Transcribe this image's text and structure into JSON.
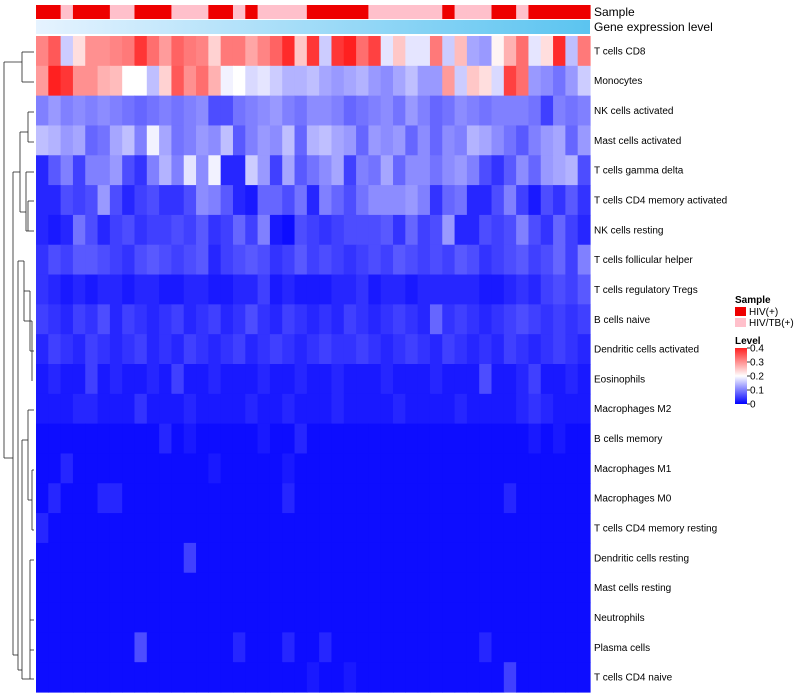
{
  "chart_data": {
    "type": "heatmap",
    "title": "",
    "tracks": [
      {
        "label": "Sample"
      },
      {
        "label": "Gene expression level"
      }
    ],
    "rows": [
      "T cells CD8",
      "Monocytes",
      "NK cells activated",
      "Mast cells activated",
      "T cells gamma delta",
      "T cells CD4 memory activated",
      "NK cells resting",
      "T cells follicular helper",
      "T cells regulatory  Tregs",
      "B cells naive",
      "Dendritic cells activated",
      "Eosinophils",
      "Macrophages M2",
      "B cells memory",
      "Macrophages M1",
      "Macrophages M0",
      "T cells CD4 memory resting",
      "Dendritic cells resting",
      "Mast cells resting",
      "Neutrophils",
      "Plasma cells",
      "T cells CD4 naive"
    ],
    "n_columns": 45,
    "sample_groups": [
      "HIV(+)",
      "HIV(+)",
      "HIV/TB(+)",
      "HIV(+)",
      "HIV(+)",
      "HIV(+)",
      "HIV/TB(+)",
      "HIV/TB(+)",
      "HIV(+)",
      "HIV(+)",
      "HIV(+)",
      "HIV/TB(+)",
      "HIV/TB(+)",
      "HIV/TB(+)",
      "HIV(+)",
      "HIV(+)",
      "HIV/TB(+)",
      "HIV(+)",
      "HIV/TB(+)",
      "HIV/TB(+)",
      "HIV/TB(+)",
      "HIV/TB(+)",
      "HIV(+)",
      "HIV(+)",
      "HIV(+)",
      "HIV(+)",
      "HIV(+)",
      "HIV/TB(+)",
      "HIV/TB(+)",
      "HIV/TB(+)",
      "HIV/TB(+)",
      "HIV/TB(+)",
      "HIV/TB(+)",
      "HIV(+)",
      "HIV/TB(+)",
      "HIV/TB(+)",
      "HIV/TB(+)",
      "HIV(+)",
      "HIV(+)",
      "HIV/TB(+)",
      "HIV(+)",
      "HIV(+)",
      "HIV(+)",
      "HIV(+)",
      "HIV(+)"
    ],
    "expression_level": [
      0.02,
      0.04,
      0.07,
      0.09,
      0.11,
      0.13,
      0.15,
      0.18,
      0.2,
      0.22,
      0.24,
      0.27,
      0.29,
      0.31,
      0.33,
      0.36,
      0.38,
      0.4,
      0.42,
      0.45,
      0.47,
      0.49,
      0.51,
      0.53,
      0.56,
      0.58,
      0.6,
      0.62,
      0.64,
      0.67,
      0.69,
      0.71,
      0.73,
      0.76,
      0.78,
      0.8,
      0.82,
      0.84,
      0.87,
      0.89,
      0.91,
      0.93,
      0.96,
      0.98,
      1.0
    ],
    "values": [
      [
        0.31,
        0.35,
        0.16,
        0.23,
        0.3,
        0.3,
        0.31,
        0.32,
        0.38,
        0.33,
        0.29,
        0.34,
        0.32,
        0.31,
        0.24,
        0.32,
        0.32,
        0.28,
        0.31,
        0.34,
        0.39,
        0.25,
        0.38,
        0.16,
        0.38,
        0.4,
        0.33,
        0.37,
        0.18,
        0.25,
        0.18,
        0.18,
        0.32,
        0.16,
        0.26,
        0.13,
        0.12,
        0.21,
        0.27,
        0.33,
        0.18,
        0.23,
        0.39,
        0.15,
        0.32
      ],
      [
        0.29,
        0.41,
        0.38,
        0.3,
        0.3,
        0.27,
        0.26,
        0.2,
        0.2,
        0.15,
        0.24,
        0.35,
        0.3,
        0.33,
        0.27,
        0.19,
        0.2,
        0.17,
        0.18,
        0.16,
        0.14,
        0.14,
        0.15,
        0.13,
        0.12,
        0.13,
        0.14,
        0.12,
        0.11,
        0.13,
        0.15,
        0.12,
        0.12,
        0.29,
        0.16,
        0.25,
        0.23,
        0.17,
        0.37,
        0.33,
        0.12,
        0.11,
        0.09,
        0.12,
        0.16
      ],
      [
        0.1,
        0.12,
        0.1,
        0.11,
        0.1,
        0.11,
        0.1,
        0.09,
        0.08,
        0.09,
        0.1,
        0.09,
        0.1,
        0.11,
        0.06,
        0.06,
        0.09,
        0.1,
        0.11,
        0.12,
        0.1,
        0.09,
        0.11,
        0.11,
        0.1,
        0.08,
        0.09,
        0.1,
        0.11,
        0.09,
        0.12,
        0.1,
        0.08,
        0.09,
        0.11,
        0.1,
        0.09,
        0.1,
        0.1,
        0.1,
        0.09,
        0.05,
        0.1,
        0.09,
        0.1
      ],
      [
        0.15,
        0.14,
        0.12,
        0.13,
        0.08,
        0.09,
        0.13,
        0.15,
        0.1,
        0.19,
        0.13,
        0.09,
        0.1,
        0.12,
        0.11,
        0.15,
        0.07,
        0.1,
        0.12,
        0.11,
        0.15,
        0.08,
        0.14,
        0.15,
        0.13,
        0.12,
        0.08,
        0.12,
        0.11,
        0.12,
        0.08,
        0.11,
        0.08,
        0.11,
        0.1,
        0.14,
        0.13,
        0.11,
        0.09,
        0.07,
        0.1,
        0.12,
        0.13,
        0.08,
        0.12
      ],
      [
        0.03,
        0.07,
        0.1,
        0.05,
        0.1,
        0.1,
        0.12,
        0.06,
        0.04,
        0.1,
        0.14,
        0.1,
        0.18,
        0.11,
        0.19,
        0.03,
        0.03,
        0.16,
        0.12,
        0.05,
        0.13,
        0.07,
        0.09,
        0.11,
        0.13,
        0.05,
        0.1,
        0.09,
        0.13,
        0.08,
        0.11,
        0.11,
        0.09,
        0.11,
        0.12,
        0.1,
        0.06,
        0.04,
        0.07,
        0.11,
        0.08,
        0.12,
        0.13,
        0.14,
        0.06
      ],
      [
        0.03,
        0.03,
        0.06,
        0.05,
        0.06,
        0.12,
        0.06,
        0.03,
        0.05,
        0.06,
        0.04,
        0.04,
        0.06,
        0.11,
        0.1,
        0.07,
        0.03,
        0.02,
        0.08,
        0.08,
        0.06,
        0.09,
        0.03,
        0.1,
        0.08,
        0.06,
        0.09,
        0.11,
        0.11,
        0.11,
        0.12,
        0.1,
        0.04,
        0.08,
        0.09,
        0.03,
        0.03,
        0.06,
        0.1,
        0.05,
        0.02,
        0.06,
        0.04,
        0.07,
        0.04
      ],
      [
        0.03,
        0.02,
        0.03,
        0.09,
        0.06,
        0.03,
        0.05,
        0.06,
        0.04,
        0.05,
        0.05,
        0.06,
        0.05,
        0.07,
        0.04,
        0.05,
        0.08,
        0.05,
        0.1,
        0.02,
        0.01,
        0.06,
        0.05,
        0.04,
        0.05,
        0.06,
        0.06,
        0.06,
        0.07,
        0.04,
        0.08,
        0.05,
        0.06,
        0.12,
        0.03,
        0.03,
        0.06,
        0.05,
        0.06,
        0.1,
        0.06,
        0.04,
        0.08,
        0.05,
        0.03
      ],
      [
        0.04,
        0.06,
        0.05,
        0.07,
        0.07,
        0.06,
        0.05,
        0.04,
        0.06,
        0.07,
        0.06,
        0.05,
        0.06,
        0.07,
        0.03,
        0.05,
        0.06,
        0.07,
        0.06,
        0.04,
        0.05,
        0.07,
        0.05,
        0.06,
        0.05,
        0.04,
        0.05,
        0.06,
        0.05,
        0.07,
        0.06,
        0.05,
        0.06,
        0.05,
        0.07,
        0.06,
        0.04,
        0.05,
        0.06,
        0.07,
        0.05,
        0.06,
        0.08,
        0.05,
        0.1
      ],
      [
        0.04,
        0.03,
        0.02,
        0.03,
        0.02,
        0.03,
        0.03,
        0.02,
        0.03,
        0.03,
        0.02,
        0.02,
        0.03,
        0.03,
        0.02,
        0.02,
        0.03,
        0.03,
        0.05,
        0.02,
        0.03,
        0.02,
        0.02,
        0.02,
        0.03,
        0.03,
        0.04,
        0.02,
        0.03,
        0.03,
        0.02,
        0.03,
        0.03,
        0.03,
        0.03,
        0.03,
        0.02,
        0.02,
        0.03,
        0.04,
        0.03,
        0.05,
        0.06,
        0.05,
        0.07
      ],
      [
        0.05,
        0.04,
        0.03,
        0.05,
        0.04,
        0.06,
        0.03,
        0.05,
        0.04,
        0.03,
        0.04,
        0.05,
        0.03,
        0.04,
        0.05,
        0.03,
        0.04,
        0.06,
        0.04,
        0.03,
        0.05,
        0.04,
        0.03,
        0.04,
        0.03,
        0.05,
        0.04,
        0.03,
        0.04,
        0.05,
        0.04,
        0.03,
        0.08,
        0.04,
        0.05,
        0.04,
        0.03,
        0.04,
        0.05,
        0.06,
        0.05,
        0.04,
        0.05,
        0.04,
        0.05
      ],
      [
        0.03,
        0.05,
        0.04,
        0.03,
        0.05,
        0.04,
        0.03,
        0.04,
        0.05,
        0.03,
        0.04,
        0.03,
        0.05,
        0.04,
        0.03,
        0.04,
        0.05,
        0.03,
        0.04,
        0.05,
        0.04,
        0.03,
        0.04,
        0.05,
        0.04,
        0.04,
        0.05,
        0.04,
        0.03,
        0.04,
        0.05,
        0.04,
        0.03,
        0.05,
        0.04,
        0.03,
        0.04,
        0.03,
        0.05,
        0.04,
        0.03,
        0.04,
        0.05,
        0.04,
        0.03
      ],
      [
        0.02,
        0.03,
        0.02,
        0.02,
        0.05,
        0.02,
        0.03,
        0.02,
        0.02,
        0.03,
        0.02,
        0.05,
        0.02,
        0.02,
        0.03,
        0.02,
        0.02,
        0.02,
        0.03,
        0.02,
        0.02,
        0.03,
        0.02,
        0.02,
        0.03,
        0.02,
        0.02,
        0.02,
        0.03,
        0.02,
        0.02,
        0.02,
        0.03,
        0.02,
        0.02,
        0.02,
        0.06,
        0.02,
        0.02,
        0.03,
        0.05,
        0.02,
        0.02,
        0.03,
        0.02
      ],
      [
        0.02,
        0.02,
        0.02,
        0.03,
        0.03,
        0.02,
        0.02,
        0.02,
        0.04,
        0.02,
        0.02,
        0.02,
        0.03,
        0.02,
        0.02,
        0.02,
        0.02,
        0.03,
        0.02,
        0.02,
        0.03,
        0.02,
        0.02,
        0.02,
        0.03,
        0.02,
        0.02,
        0.02,
        0.02,
        0.03,
        0.02,
        0.02,
        0.02,
        0.02,
        0.03,
        0.02,
        0.02,
        0.02,
        0.02,
        0.03,
        0.04,
        0.03,
        0.02,
        0.02,
        0.02
      ],
      [
        0.01,
        0.01,
        0.01,
        0.01,
        0.01,
        0.01,
        0.01,
        0.01,
        0.01,
        0.01,
        0.03,
        0.01,
        0.02,
        0.01,
        0.01,
        0.01,
        0.01,
        0.01,
        0.02,
        0.01,
        0.01,
        0.03,
        0.01,
        0.01,
        0.01,
        0.01,
        0.01,
        0.01,
        0.01,
        0.01,
        0.01,
        0.01,
        0.01,
        0.01,
        0.01,
        0.01,
        0.01,
        0.01,
        0.01,
        0.01,
        0.02,
        0.01,
        0.02,
        0.01,
        0.01
      ],
      [
        0.01,
        0.01,
        0.03,
        0.01,
        0.01,
        0.01,
        0.01,
        0.01,
        0.01,
        0.01,
        0.01,
        0.01,
        0.01,
        0.01,
        0.02,
        0.01,
        0.01,
        0.01,
        0.01,
        0.01,
        0.02,
        0.01,
        0.01,
        0.01,
        0.01,
        0.01,
        0.01,
        0.01,
        0.01,
        0.01,
        0.01,
        0.01,
        0.01,
        0.01,
        0.01,
        0.01,
        0.01,
        0.01,
        0.01,
        0.01,
        0.01,
        0.01,
        0.01,
        0.01,
        0.01
      ],
      [
        0.01,
        0.03,
        0.01,
        0.01,
        0.01,
        0.03,
        0.03,
        0.01,
        0.01,
        0.01,
        0.01,
        0.01,
        0.01,
        0.01,
        0.01,
        0.01,
        0.01,
        0.01,
        0.01,
        0.01,
        0.03,
        0.01,
        0.01,
        0.01,
        0.01,
        0.01,
        0.01,
        0.01,
        0.01,
        0.01,
        0.01,
        0.01,
        0.01,
        0.01,
        0.01,
        0.01,
        0.01,
        0.01,
        0.03,
        0.01,
        0.01,
        0.01,
        0.01,
        0.01,
        0.01
      ],
      [
        0.03,
        0.01,
        0.01,
        0.01,
        0.01,
        0.01,
        0.01,
        0.01,
        0.01,
        0.01,
        0.01,
        0.01,
        0.01,
        0.01,
        0.01,
        0.01,
        0.01,
        0.01,
        0.01,
        0.01,
        0.01,
        0.01,
        0.01,
        0.01,
        0.01,
        0.01,
        0.01,
        0.01,
        0.01,
        0.01,
        0.01,
        0.01,
        0.01,
        0.01,
        0.01,
        0.01,
        0.01,
        0.01,
        0.01,
        0.01,
        0.01,
        0.01,
        0.01,
        0.01,
        0.01
      ],
      [
        0.01,
        0.01,
        0.01,
        0.01,
        0.01,
        0.01,
        0.01,
        0.01,
        0.01,
        0.01,
        0.01,
        0.01,
        0.05,
        0.01,
        0.01,
        0.01,
        0.01,
        0.01,
        0.01,
        0.01,
        0.01,
        0.01,
        0.01,
        0.01,
        0.01,
        0.01,
        0.01,
        0.01,
        0.01,
        0.01,
        0.01,
        0.01,
        0.01,
        0.01,
        0.01,
        0.01,
        0.01,
        0.01,
        0.01,
        0.01,
        0.01,
        0.01,
        0.01,
        0.01,
        0.01
      ],
      [
        0.01,
        0.01,
        0.01,
        0.01,
        0.01,
        0.01,
        0.01,
        0.01,
        0.01,
        0.01,
        0.01,
        0.01,
        0.01,
        0.01,
        0.01,
        0.01,
        0.01,
        0.01,
        0.01,
        0.01,
        0.01,
        0.01,
        0.01,
        0.01,
        0.01,
        0.01,
        0.01,
        0.01,
        0.01,
        0.01,
        0.01,
        0.01,
        0.01,
        0.01,
        0.01,
        0.01,
        0.01,
        0.01,
        0.01,
        0.01,
        0.01,
        0.01,
        0.01,
        0.01,
        0.01
      ],
      [
        0.01,
        0.01,
        0.01,
        0.01,
        0.01,
        0.01,
        0.01,
        0.01,
        0.01,
        0.01,
        0.01,
        0.01,
        0.01,
        0.01,
        0.01,
        0.01,
        0.01,
        0.01,
        0.01,
        0.01,
        0.01,
        0.01,
        0.01,
        0.01,
        0.01,
        0.01,
        0.01,
        0.01,
        0.01,
        0.01,
        0.01,
        0.01,
        0.01,
        0.01,
        0.01,
        0.01,
        0.01,
        0.01,
        0.01,
        0.01,
        0.01,
        0.01,
        0.01,
        0.01,
        0.01
      ],
      [
        0.01,
        0.01,
        0.01,
        0.01,
        0.01,
        0.01,
        0.01,
        0.01,
        0.06,
        0.01,
        0.01,
        0.01,
        0.01,
        0.01,
        0.01,
        0.01,
        0.03,
        0.01,
        0.01,
        0.01,
        0.03,
        0.01,
        0.01,
        0.03,
        0.01,
        0.01,
        0.01,
        0.01,
        0.01,
        0.01,
        0.01,
        0.01,
        0.01,
        0.01,
        0.01,
        0.01,
        0.03,
        0.01,
        0.01,
        0.01,
        0.01,
        0.01,
        0.01,
        0.01,
        0.01
      ],
      [
        0.01,
        0.01,
        0.01,
        0.01,
        0.01,
        0.01,
        0.01,
        0.01,
        0.01,
        0.01,
        0.01,
        0.01,
        0.01,
        0.01,
        0.01,
        0.01,
        0.01,
        0.01,
        0.01,
        0.01,
        0.01,
        0.01,
        0.02,
        0.01,
        0.01,
        0.02,
        0.01,
        0.01,
        0.01,
        0.01,
        0.01,
        0.01,
        0.01,
        0.01,
        0.01,
        0.01,
        0.01,
        0.01,
        0.05,
        0.01,
        0.01,
        0.01,
        0.01,
        0.01,
        0.01
      ]
    ],
    "legend": {
      "sample": {
        "title": "Sample",
        "entries": [
          "HIV(+)",
          "HIV/TB(+)"
        ]
      },
      "level": {
        "title": "Level",
        "ticks": [
          0.4,
          0.3,
          0.2,
          0.1,
          0
        ],
        "range": [
          0,
          0.4
        ]
      }
    },
    "colors": {
      "hiv": "#ee0000",
      "hivtb": "#ffc0cb",
      "low": "#0000ff",
      "mid": "#ffffff",
      "high": "#ff2020",
      "gel_low": "#e6f3ff",
      "gel_high": "#5bc4f0"
    }
  }
}
